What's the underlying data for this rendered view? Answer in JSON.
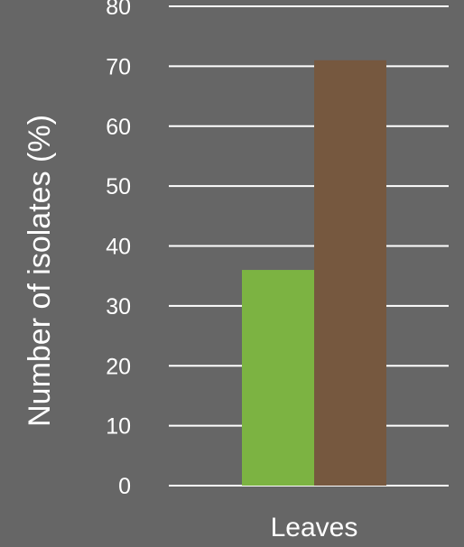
{
  "chart_data": {
    "type": "bar",
    "title": "",
    "xlabel": "",
    "ylabel": "Number of isolates (%)",
    "ylim": [
      0,
      80
    ],
    "yticks": [
      0,
      10,
      20,
      30,
      40,
      50,
      60,
      70,
      80
    ],
    "grid": true,
    "categories": [
      "Leaves"
    ],
    "series": [
      {
        "values": [
          36
        ],
        "color": "#7cb342"
      },
      {
        "values": [
          71
        ],
        "color": "#76583f"
      }
    ]
  }
}
